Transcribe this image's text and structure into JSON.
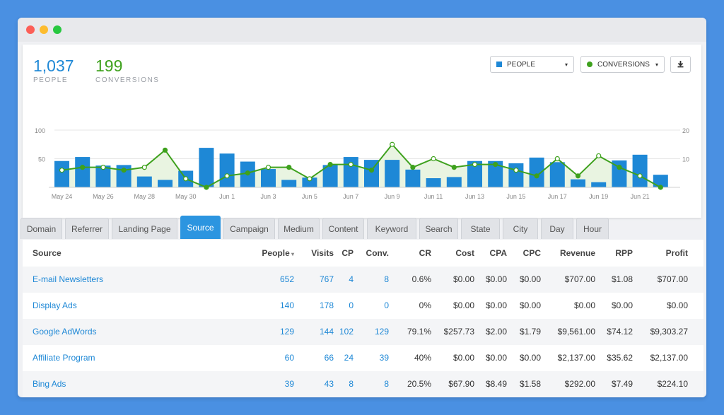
{
  "summary": {
    "people_value": "1,037",
    "people_label": "PEOPLE",
    "conversions_value": "199",
    "conversions_label": "CONVERSIONS"
  },
  "controls": {
    "people_dropdown": "PEOPLE",
    "conversions_dropdown": "CONVERSIONS",
    "caret": "▾"
  },
  "colors": {
    "bar": "#1e88d6",
    "line": "#3ea11d",
    "area": "#e9f4e1",
    "tab_active": "#2c95e0"
  },
  "chart_data": {
    "type": "bar",
    "x": [
      "May 24",
      "May 25",
      "May 26",
      "May 27",
      "May 28",
      "May 29",
      "May 30",
      "May 31",
      "Jun 1",
      "Jun 2",
      "Jun 3",
      "Jun 4",
      "Jun 5",
      "Jun 6",
      "Jun 7",
      "Jun 8",
      "Jun 9",
      "Jun 10",
      "Jun 11",
      "Jun 12",
      "Jun 13",
      "Jun 14",
      "Jun 15",
      "Jun 16",
      "Jun 17",
      "Jun 18",
      "Jun 19",
      "Jun 20",
      "Jun 21",
      "Jun 22"
    ],
    "tick_labels": [
      "May 24",
      "May 26",
      "May 28",
      "May 30",
      "Jun 1",
      "Jun 3",
      "Jun 5",
      "Jun 7",
      "Jun 9",
      "Jun 11",
      "Jun 13",
      "Jun 15",
      "Jun 17",
      "Jun 19",
      "Jun 21"
    ],
    "series": [
      {
        "name": "PEOPLE",
        "type": "bar",
        "axis": "left",
        "values": [
          46,
          53,
          38,
          39,
          19,
          13,
          29,
          69,
          59,
          45,
          32,
          13,
          17,
          39,
          53,
          48,
          48,
          31,
          16,
          18,
          46,
          46,
          42,
          52,
          44,
          14,
          9,
          47,
          57,
          22
        ]
      },
      {
        "name": "CONVERSIONS",
        "type": "line",
        "axis": "right",
        "values": [
          6,
          7,
          7,
          6,
          7,
          13,
          3,
          0,
          4,
          5,
          7,
          7,
          3,
          8,
          8,
          6,
          15,
          7,
          10,
          7,
          8,
          8,
          6,
          4,
          10,
          4,
          11,
          7,
          4,
          0
        ]
      }
    ],
    "ylim_left": [
      0,
      100
    ],
    "yticks_left": [
      50,
      100
    ],
    "ylim_right": [
      0,
      20
    ],
    "yticks_right": [
      10,
      20
    ],
    "grid": true
  },
  "tabs": [
    "Domain",
    "Referrer",
    "Landing Page",
    "Source",
    "Campaign",
    "Medium",
    "Content",
    "Keyword",
    "Search",
    "State",
    "City",
    "Day",
    "Hour"
  ],
  "active_tab": "Source",
  "table": {
    "headers": [
      "Source",
      "People",
      "Visits",
      "CP",
      "Conv.",
      "CR",
      "Cost",
      "CPA",
      "CPC",
      "Revenue",
      "RPP",
      "Profit"
    ],
    "sort_indicator": "▾",
    "rows": [
      [
        "E-mail Newsletters",
        "652",
        "767",
        "4",
        "8",
        "0.6%",
        "$0.00",
        "$0.00",
        "$0.00",
        "$707.00",
        "$1.08",
        "$707.00"
      ],
      [
        "Display Ads",
        "140",
        "178",
        "0",
        "0",
        "0%",
        "$0.00",
        "$0.00",
        "$0.00",
        "$0.00",
        "$0.00",
        "$0.00"
      ],
      [
        "Google AdWords",
        "129",
        "144",
        "102",
        "129",
        "79.1%",
        "$257.73",
        "$2.00",
        "$1.79",
        "$9,561.00",
        "$74.12",
        "$9,303.27"
      ],
      [
        "Affiliate Program",
        "60",
        "66",
        "24",
        "39",
        "40%",
        "$0.00",
        "$0.00",
        "$0.00",
        "$2,137.00",
        "$35.62",
        "$2,137.00"
      ],
      [
        "Bing Ads",
        "39",
        "43",
        "8",
        "8",
        "20.5%",
        "$67.90",
        "$8.49",
        "$1.58",
        "$292.00",
        "$7.49",
        "$224.10"
      ]
    ]
  }
}
